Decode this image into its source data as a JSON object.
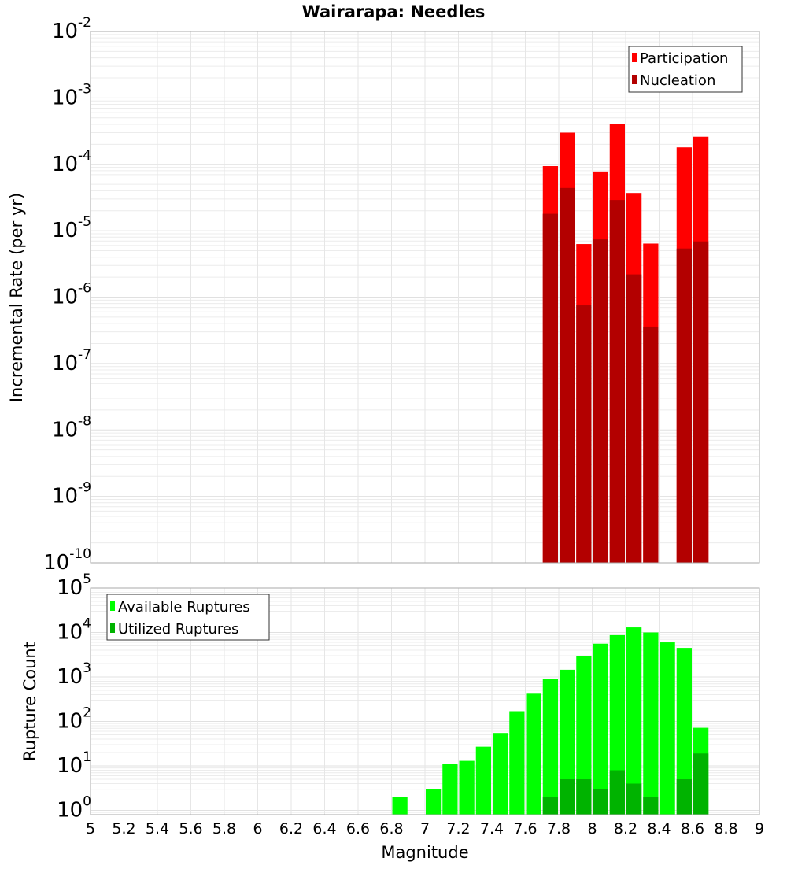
{
  "chart_data": [
    {
      "type": "bar",
      "title": "Wairarapa: Needles",
      "xlabel": "Magnitude",
      "ylabel": "Incremental Rate (per yr)",
      "yscale": "log",
      "ylim": [
        1e-10,
        0.01
      ],
      "xlim": [
        5,
        9
      ],
      "y_tick_exponents": [
        -10,
        -9,
        -8,
        -7,
        -6,
        -5,
        -4,
        -3,
        -2
      ],
      "legend": {
        "placement": "top-right",
        "entries": [
          "Participation",
          "Nucleation"
        ]
      },
      "colors": {
        "Participation": "#ff0000",
        "Nucleation": "#b30000"
      },
      "x": [
        7.75,
        7.85,
        7.95,
        8.05,
        8.15,
        8.25,
        8.35,
        8.55,
        8.65
      ],
      "series": [
        {
          "name": "Participation",
          "values": [
            9.4e-05,
            0.0003,
            6.3e-06,
            7.8e-05,
            0.0004,
            3.7e-05,
            6.4e-06,
            0.00018,
            0.00026
          ]
        },
        {
          "name": "Nucleation",
          "values": [
            1.8e-05,
            4.4e-05,
            7.5e-07,
            7.4e-06,
            2.9e-05,
            2.2e-06,
            3.6e-07,
            5.4e-06,
            6.9e-06
          ]
        }
      ]
    },
    {
      "type": "bar",
      "xlabel": "Magnitude",
      "ylabel": "Rupture Count",
      "yscale": "log",
      "ylim": [
        0.8,
        100000
      ],
      "xlim": [
        5,
        9
      ],
      "y_tick_exponents": [
        0,
        1,
        2,
        3,
        4,
        5
      ],
      "x_ticks": [
        "5",
        "5.2",
        "5.4",
        "5.6",
        "5.8",
        "6",
        "6.2",
        "6.4",
        "6.6",
        "6.8",
        "7",
        "7.2",
        "7.4",
        "7.6",
        "7.8",
        "8",
        "8.2",
        "8.4",
        "8.6",
        "8.8",
        "9"
      ],
      "legend": {
        "placement": "top-left",
        "entries": [
          "Available Ruptures",
          "Utilized Ruptures"
        ]
      },
      "colors": {
        "Available Ruptures": "#00ff00",
        "Utilized Ruptures": "#00b300"
      },
      "series": [
        {
          "name": "Available Ruptures",
          "x": [
            6.85,
            7.05,
            7.15,
            7.25,
            7.35,
            7.45,
            7.55,
            7.65,
            7.75,
            7.85,
            7.95,
            8.05,
            8.15,
            8.25,
            8.35,
            8.45,
            8.55,
            8.65
          ],
          "values": [
            2,
            3,
            11,
            13,
            27,
            55,
            170,
            420,
            900,
            1450,
            3000,
            5600,
            8700,
            13000,
            10000,
            6000,
            4500,
            72
          ]
        },
        {
          "name": "Utilized Ruptures",
          "x": [
            7.75,
            7.85,
            7.95,
            8.05,
            8.15,
            8.25,
            8.35,
            8.55,
            8.65
          ],
          "values": [
            2,
            5,
            5,
            3,
            8,
            4,
            2,
            5,
            19
          ]
        }
      ]
    }
  ]
}
